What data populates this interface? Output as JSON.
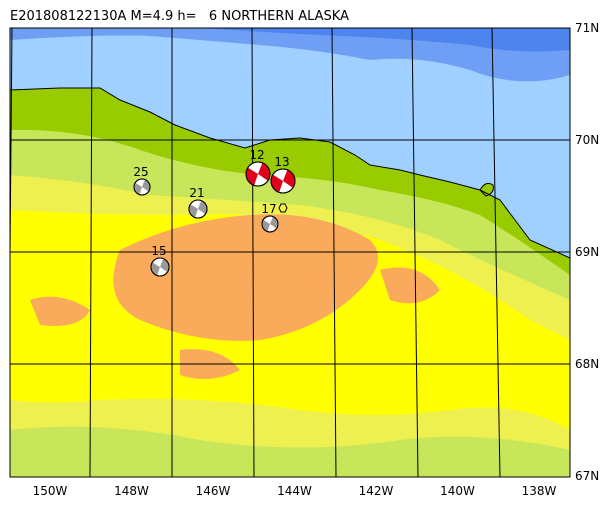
{
  "title": "E201808122130A M=4.9 h=   6 NORTHERN ALASKA",
  "latitude_labels": [
    "71N",
    "70N",
    "69N",
    "68N",
    "67N"
  ],
  "longitude_labels": [
    "150W",
    "148W",
    "146W",
    "144W",
    "142W",
    "140W",
    "138W"
  ],
  "events": [
    {
      "label": "25"
    },
    {
      "label": "21"
    },
    {
      "label": "15"
    },
    {
      "label": "12"
    },
    {
      "label": "13"
    },
    {
      "label": "17"
    }
  ]
}
